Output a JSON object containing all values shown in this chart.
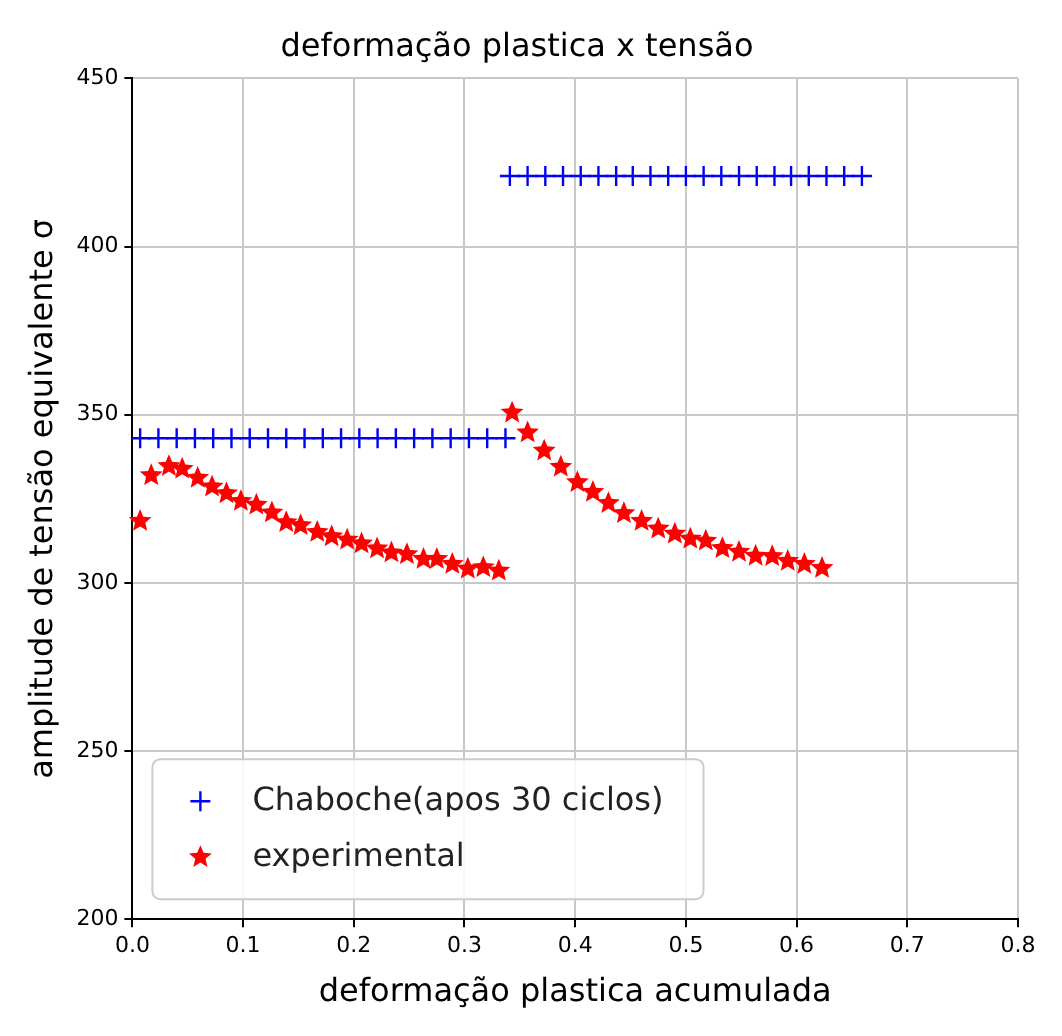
{
  "chart_data": {
    "type": "scatter",
    "title": "deformação plastica x tensão",
    "xlabel": "deformação plastica acumulada",
    "ylabel": "amplitude de tensão equivalente σ",
    "xlim": [
      0,
      0.8
    ],
    "xticks": [
      {
        "value": 0,
        "label": "0.0"
      },
      0.1,
      0.2,
      0.3,
      0.4,
      0.5,
      0.6,
      0.7,
      0.8
    ],
    "ylim": [
      200,
      450
    ],
    "yticks": [
      200,
      250,
      300,
      350,
      400,
      450
    ],
    "grid": true,
    "legend": "bottom left",
    "series": [
      {
        "name": "Chaboche(apos 30 ciclos)",
        "color": "#0000ff",
        "marker": "cross",
        "x": [
          0.007,
          0.0235,
          0.04,
          0.0565,
          0.073,
          0.0895,
          0.106,
          0.1225,
          0.139,
          0.1555,
          0.172,
          0.1885,
          0.205,
          0.2215,
          0.238,
          0.2545,
          0.271,
          0.2875,
          0.304,
          0.3205,
          0.337,
          0.341,
          0.357,
          0.373,
          0.389,
          0.405,
          0.421,
          0.437,
          0.452,
          0.468,
          0.484,
          0.5,
          0.516,
          0.532,
          0.548,
          0.564,
          0.58,
          0.595,
          0.611,
          0.627,
          0.643,
          0.659
        ],
        "values": [
          343,
          343,
          343,
          343,
          343,
          343,
          343,
          343,
          343,
          343,
          343,
          343,
          343,
          343,
          343,
          343,
          343,
          343,
          343,
          343,
          343,
          421,
          421,
          421,
          421,
          421,
          421,
          421,
          421,
          421,
          421,
          421,
          421,
          421,
          421,
          421,
          421,
          421,
          421,
          421,
          421,
          421
        ]
      },
      {
        "name": "experimental",
        "color": "#ff0000",
        "marker": "star",
        "x": [
          0.007,
          0.017,
          0.033,
          0.045,
          0.059,
          0.072,
          0.085,
          0.098,
          0.112,
          0.126,
          0.139,
          0.152,
          0.167,
          0.18,
          0.194,
          0.207,
          0.221,
          0.234,
          0.248,
          0.263,
          0.275,
          0.289,
          0.303,
          0.317,
          0.331,
          0.343,
          0.357,
          0.372,
          0.387,
          0.402,
          0.416,
          0.43,
          0.444,
          0.46,
          0.475,
          0.49,
          0.504,
          0.518,
          0.533,
          0.548,
          0.563,
          0.578,
          0.592,
          0.607,
          0.623
        ],
        "values": [
          318.4,
          332,
          334.7,
          333.9,
          331.2,
          328.6,
          326.6,
          324.3,
          323.2,
          320.9,
          318,
          317.1,
          315.1,
          313.8,
          312.8,
          311.7,
          310.2,
          309,
          308.5,
          307.1,
          307.1,
          305.6,
          304.2,
          304.6,
          303.6,
          350.6,
          344.7,
          339.3,
          334.5,
          329.9,
          327,
          323.7,
          320.7,
          318.4,
          316.1,
          314.6,
          313.1,
          312.5,
          310.3,
          309.2,
          308,
          307.9,
          306.5,
          305.6,
          304.4
        ]
      }
    ]
  }
}
